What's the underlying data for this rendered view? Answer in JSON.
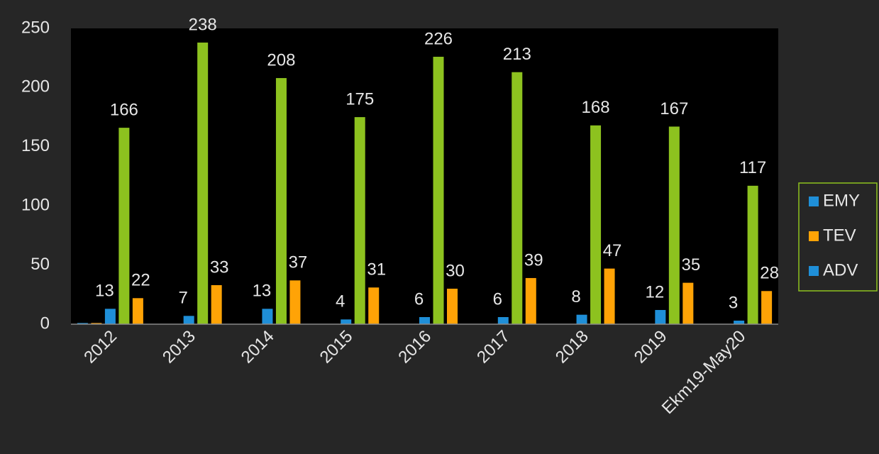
{
  "chart_data": {
    "type": "bar",
    "categories": [
      "2012",
      "2013",
      "2014",
      "2015",
      "2016",
      "2017",
      "2018",
      "2019",
      "Ekm19-May20"
    ],
    "series": [
      {
        "name": "EMY",
        "color": "#1f8fd8",
        "values": [
          1,
          0,
          0,
          0,
          0,
          0,
          0,
          0,
          0
        ]
      },
      {
        "name": "TEV",
        "color": "#ffa306",
        "values": [
          1,
          0,
          0,
          0,
          0,
          0,
          0,
          0,
          0
        ]
      },
      {
        "name": "ADV",
        "color": "#1f8fd8",
        "values": [
          13,
          7,
          13,
          4,
          6,
          6,
          8,
          12,
          3
        ],
        "data_labels": true
      },
      {
        "color": "#8dc21f",
        "values": [
          166,
          238,
          208,
          175,
          226,
          213,
          168,
          167,
          117
        ],
        "data_labels": true
      },
      {
        "color": "#ffa306",
        "values": [
          22,
          33,
          37,
          31,
          30,
          39,
          47,
          35,
          28
        ],
        "data_labels": true
      }
    ],
    "ylim": [
      0,
      250
    ],
    "yticks": [
      0,
      50,
      100,
      150,
      200,
      250
    ],
    "grid": false,
    "legend": "right"
  }
}
